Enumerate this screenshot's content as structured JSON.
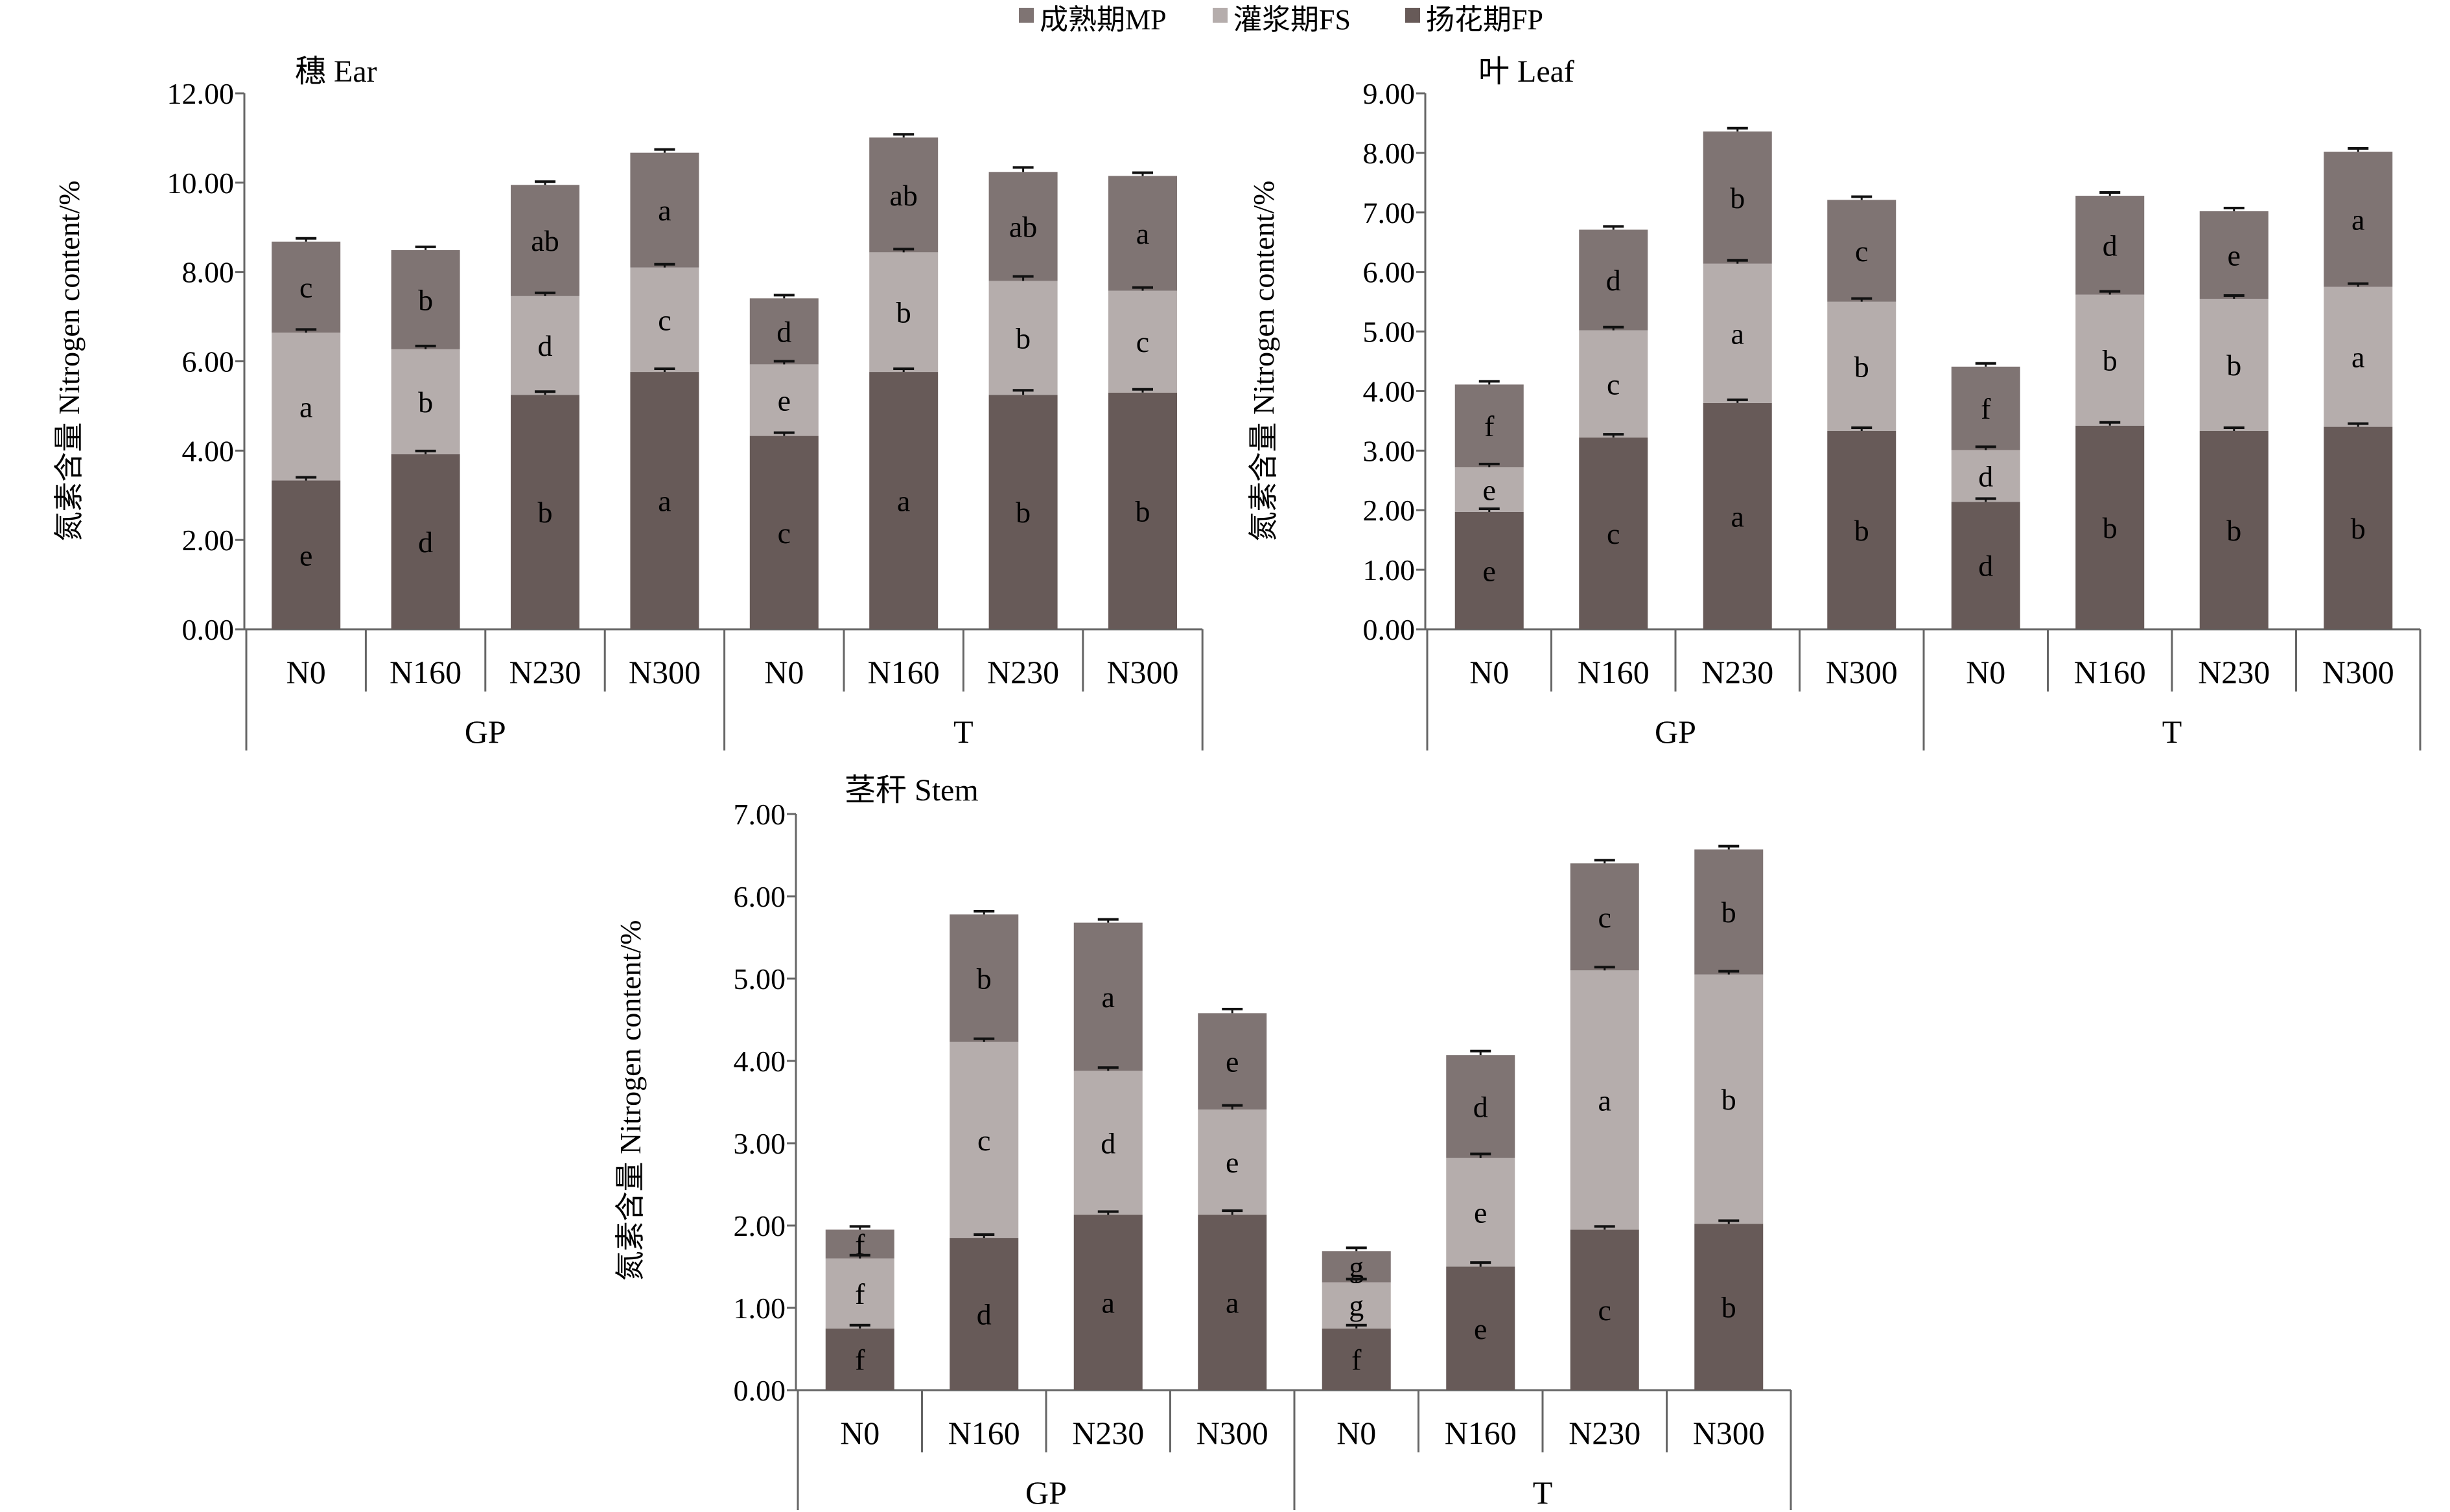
{
  "legend": [
    {
      "label": "成熟期MP",
      "color": "#7f7473"
    },
    {
      "label": "灌浆期FS",
      "color": "#b5adac"
    },
    {
      "label": "扬花期FP",
      "color": "#675a58"
    }
  ],
  "chart_data": [
    {
      "type": "bar",
      "stacked": true,
      "title": "穗 Ear",
      "ylabel": "氮素含量 Nitrogen content/%",
      "ylim": [
        0,
        12
      ],
      "yticks": [
        "0.00",
        "2.00",
        "4.00",
        "6.00",
        "8.00",
        "10.00",
        "12.00"
      ],
      "categories": [
        "N0",
        "N160",
        "N230",
        "N300",
        "N0",
        "N160",
        "N230",
        "N300"
      ],
      "groups": [
        {
          "label": "GP",
          "count": 4
        },
        {
          "label": "T",
          "count": 4
        }
      ],
      "series": [
        {
          "name": "扬花期FP",
          "values": [
            3.33,
            3.92,
            5.25,
            5.76,
            4.33,
            5.76,
            5.25,
            5.3
          ],
          "letters": [
            "e",
            "d",
            "b",
            "a",
            "c",
            "a",
            "b",
            "b"
          ]
        },
        {
          "name": "灌浆期FS",
          "values": [
            3.31,
            2.35,
            2.21,
            2.34,
            1.6,
            2.68,
            2.55,
            2.28
          ],
          "letters": [
            "a",
            "b",
            "d",
            "c",
            "e",
            "b",
            "b",
            "c"
          ]
        },
        {
          "name": "成熟期MP",
          "values": [
            2.04,
            2.22,
            2.49,
            2.57,
            1.48,
            2.57,
            2.44,
            2.57
          ],
          "letters": [
            "c",
            "b",
            "ab",
            "a",
            "d",
            "ab",
            "ab",
            "a"
          ]
        }
      ],
      "errors": [
        0.05,
        0.05,
        0.05,
        0.05,
        0.05,
        0.05,
        0.1,
        0.05
      ]
    },
    {
      "type": "bar",
      "stacked": true,
      "title": "叶 Leaf",
      "ylabel": "氮素含量 Nitrogen content/%",
      "ylim": [
        0,
        9
      ],
      "yticks": [
        "0.00",
        "1.00",
        "2.00",
        "3.00",
        "4.00",
        "5.00",
        "6.00",
        "7.00",
        "8.00",
        "9.00"
      ],
      "categories": [
        "N0",
        "N160",
        "N230",
        "N300",
        "N0",
        "N160",
        "N230",
        "N300"
      ],
      "groups": [
        {
          "label": "GP",
          "count": 4
        },
        {
          "label": "T",
          "count": 4
        }
      ],
      "series": [
        {
          "name": "扬花期FP",
          "values": [
            1.97,
            3.22,
            3.8,
            3.33,
            2.14,
            3.42,
            3.33,
            3.4
          ],
          "letters": [
            "e",
            "c",
            "a",
            "b",
            "d",
            "b",
            "b",
            "b"
          ]
        },
        {
          "name": "灌浆期FS",
          "values": [
            0.75,
            1.8,
            2.34,
            2.17,
            0.87,
            2.2,
            2.22,
            2.35
          ],
          "letters": [
            "e",
            "c",
            "a",
            "b",
            "d",
            "b",
            "b",
            "a"
          ]
        },
        {
          "name": "成熟期MP",
          "values": [
            1.39,
            1.69,
            2.22,
            1.71,
            1.4,
            1.66,
            1.47,
            2.27
          ],
          "letters": [
            "f",
            "d",
            "b",
            "c",
            "f",
            "d",
            "e",
            "a"
          ]
        }
      ],
      "errors": [
        0.03,
        0.03,
        0.03,
        0.03,
        0.03,
        0.03,
        0.03,
        0.03
      ]
    },
    {
      "type": "bar",
      "stacked": true,
      "title": "茎秆 Stem",
      "ylabel": "氮素含量 Nitrogen content/%",
      "ylim": [
        0,
        7
      ],
      "yticks": [
        "0.00",
        "1.00",
        "2.00",
        "3.00",
        "4.00",
        "5.00",
        "6.00",
        "7.00"
      ],
      "categories": [
        "N0",
        "N160",
        "N230",
        "N300",
        "N0",
        "N160",
        "N230",
        "N300"
      ],
      "groups": [
        {
          "label": "GP",
          "count": 4
        },
        {
          "label": "T",
          "count": 4
        }
      ],
      "series": [
        {
          "name": "扬花期FP",
          "values": [
            0.75,
            1.85,
            2.13,
            2.13,
            0.75,
            1.5,
            1.95,
            2.02
          ],
          "letters": [
            "f",
            "d",
            "a",
            "a",
            "f",
            "e",
            "c",
            "b"
          ]
        },
        {
          "name": "灌浆期FS",
          "values": [
            0.85,
            2.38,
            1.75,
            1.28,
            0.56,
            1.32,
            3.15,
            3.03
          ],
          "letters": [
            "f",
            "c",
            "d",
            "e",
            "g",
            "e",
            "a",
            "b"
          ]
        },
        {
          "name": "成熟期MP",
          "values": [
            0.35,
            1.55,
            1.8,
            1.17,
            0.38,
            1.25,
            1.3,
            1.52
          ],
          "letters": [
            "f",
            "b",
            "a",
            "e",
            "g",
            "d",
            "c",
            "b"
          ]
        }
      ],
      "errors": [
        0.03,
        0.03,
        0.03,
        0.05,
        0.03,
        0.05,
        0.03,
        0.03
      ]
    }
  ]
}
